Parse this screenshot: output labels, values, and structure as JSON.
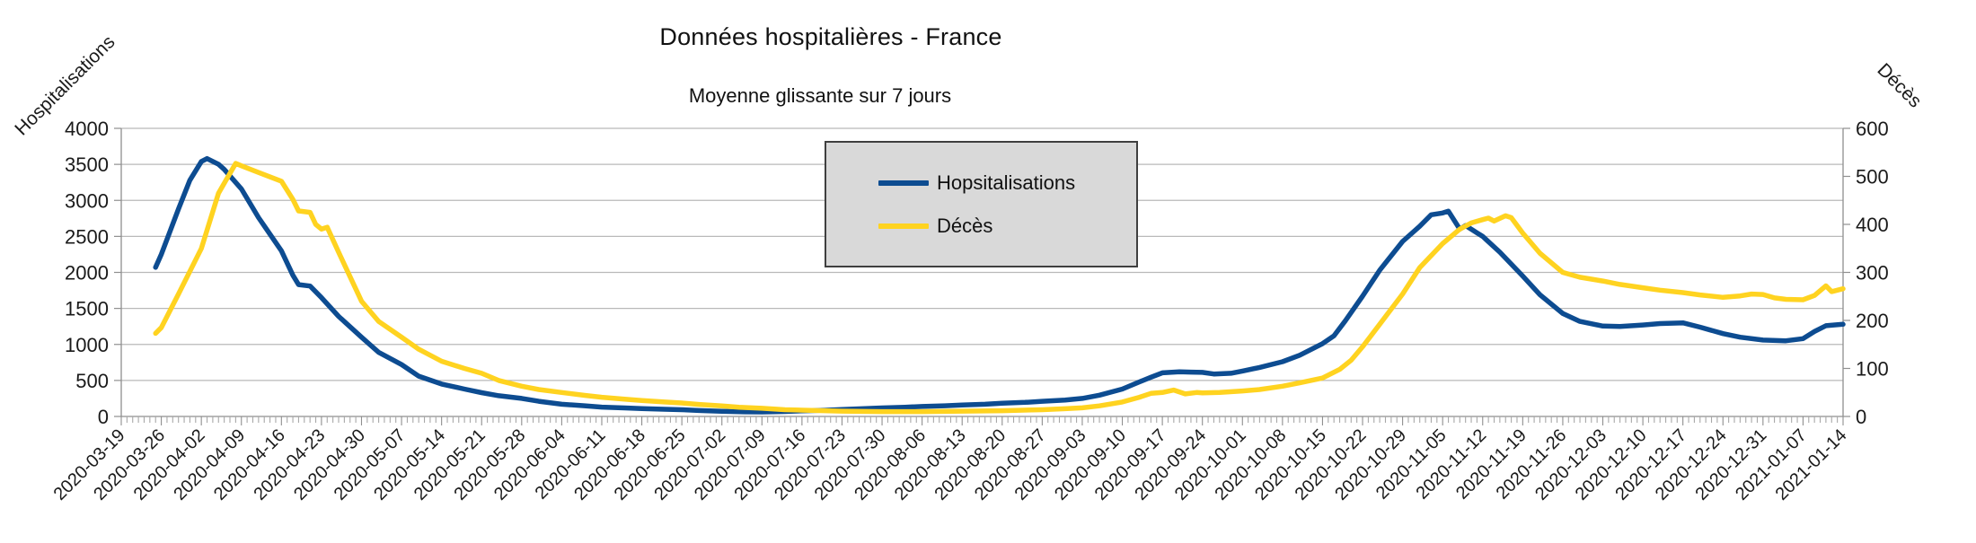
{
  "title": "Données hospitalières - France",
  "subtitle": "Moyenne glissante sur 7 jours",
  "left_axis": {
    "label": "Hospitalisations",
    "min": 0,
    "max": 4000,
    "tick_step": 500,
    "ticks": [
      "4000",
      "3500",
      "3000",
      "2500",
      "2000",
      "1500",
      "1000",
      "500",
      "0"
    ]
  },
  "right_axis": {
    "label": "Décès",
    "min": 0,
    "max": 600,
    "tick_step": 100,
    "ticks": [
      "600",
      "500",
      "400",
      "300",
      "200",
      "100",
      "0"
    ]
  },
  "legend": {
    "items": [
      {
        "label": "Hopsitalisations",
        "color": "#0d4c91"
      },
      {
        "label": "Décès",
        "color": "#ffd320"
      }
    ]
  },
  "chart_data": {
    "type": "line",
    "title": "Données hospitalières - France",
    "subtitle": "Moyenne glissante sur 7 jours",
    "x_start_date": "2020-03-19",
    "x_end_date": "2021-01-14",
    "x_minor_ticks": "daily",
    "x_tick_labels": [
      "2020-03-19",
      "2020-03-26",
      "2020-04-02",
      "2020-04-09",
      "2020-04-16",
      "2020-04-23",
      "2020-04-30",
      "2020-05-07",
      "2020-05-14",
      "2020-05-21",
      "2020-05-28",
      "2020-06-04",
      "2020-06-11",
      "2020-06-18",
      "2020-06-25",
      "2020-07-02",
      "2020-07-09",
      "2020-07-16",
      "2020-07-23",
      "2020-07-30",
      "2020-08-06",
      "2020-08-13",
      "2020-08-20",
      "2020-08-27",
      "2020-09-03",
      "2020-09-10",
      "2020-09-17",
      "2020-09-24",
      "2020-10-01",
      "2020-10-08",
      "2020-10-15",
      "2020-10-22",
      "2020-10-29",
      "2020-11-05",
      "2020-11-12",
      "2020-11-19",
      "2020-11-26",
      "2020-12-03",
      "2020-12-10",
      "2020-12-17",
      "2020-12-24",
      "2020-12-31",
      "2021-01-07",
      "2021-01-14"
    ],
    "ylim_left": [
      0,
      4000
    ],
    "ylim_right": [
      0,
      600
    ],
    "grid": "horizontal",
    "legend_position": "inner-top-center",
    "series": [
      {
        "name": "Hopsitalisations",
        "axis": "left",
        "color": "#0d4c91",
        "points_day_value": [
          [
            6,
            2070
          ],
          [
            7,
            2250
          ],
          [
            10,
            2880
          ],
          [
            12,
            3280
          ],
          [
            14,
            3540
          ],
          [
            15,
            3580
          ],
          [
            17,
            3500
          ],
          [
            18,
            3430
          ],
          [
            21,
            3160
          ],
          [
            24,
            2760
          ],
          [
            28,
            2300
          ],
          [
            30,
            1960
          ],
          [
            31,
            1830
          ],
          [
            33,
            1810
          ],
          [
            35,
            1650
          ],
          [
            38,
            1390
          ],
          [
            42,
            1100
          ],
          [
            45,
            890
          ],
          [
            49,
            720
          ],
          [
            52,
            560
          ],
          [
            56,
            450
          ],
          [
            60,
            380
          ],
          [
            63,
            330
          ],
          [
            66,
            288
          ],
          [
            70,
            250
          ],
          [
            73,
            210
          ],
          [
            77,
            170
          ],
          [
            81,
            148
          ],
          [
            84,
            130
          ],
          [
            88,
            118
          ],
          [
            91,
            110
          ],
          [
            95,
            100
          ],
          [
            98,
            93
          ],
          [
            101,
            82
          ],
          [
            105,
            72
          ],
          [
            109,
            64
          ],
          [
            112,
            62
          ],
          [
            116,
            68
          ],
          [
            119,
            78
          ],
          [
            123,
            86
          ],
          [
            126,
            96
          ],
          [
            129,
            106
          ],
          [
            133,
            118
          ],
          [
            137,
            128
          ],
          [
            140,
            138
          ],
          [
            144,
            148
          ],
          [
            147,
            158
          ],
          [
            151,
            170
          ],
          [
            154,
            184
          ],
          [
            158,
            196
          ],
          [
            161,
            210
          ],
          [
            165,
            228
          ],
          [
            168,
            250
          ],
          [
            171,
            295
          ],
          [
            175,
            380
          ],
          [
            178,
            480
          ],
          [
            180,
            545
          ],
          [
            182,
            605
          ],
          [
            185,
            620
          ],
          [
            187,
            615
          ],
          [
            189,
            612
          ],
          [
            191,
            590
          ],
          [
            194,
            600
          ],
          [
            196,
            630
          ],
          [
            199,
            680
          ],
          [
            203,
            760
          ],
          [
            206,
            850
          ],
          [
            210,
            1010
          ],
          [
            212,
            1120
          ],
          [
            214,
            1330
          ],
          [
            217,
            1670
          ],
          [
            220,
            2030
          ],
          [
            224,
            2430
          ],
          [
            227,
            2640
          ],
          [
            229,
            2800
          ],
          [
            231,
            2825
          ],
          [
            232,
            2850
          ],
          [
            234,
            2600
          ],
          [
            235,
            2650
          ],
          [
            237,
            2550
          ],
          [
            238,
            2500
          ],
          [
            241,
            2280
          ],
          [
            245,
            1950
          ],
          [
            248,
            1690
          ],
          [
            252,
            1430
          ],
          [
            255,
            1320
          ],
          [
            259,
            1255
          ],
          [
            262,
            1250
          ],
          [
            266,
            1270
          ],
          [
            269,
            1290
          ],
          [
            273,
            1300
          ],
          [
            276,
            1240
          ],
          [
            280,
            1150
          ],
          [
            283,
            1100
          ],
          [
            287,
            1060
          ],
          [
            291,
            1050
          ],
          [
            294,
            1080
          ],
          [
            296,
            1180
          ],
          [
            298,
            1260
          ],
          [
            301,
            1280
          ]
        ]
      },
      {
        "name": "Décès",
        "axis": "right",
        "color": "#ffd320",
        "points_day_value": [
          [
            6,
            173
          ],
          [
            7,
            185
          ],
          [
            10,
            255
          ],
          [
            14,
            350
          ],
          [
            17,
            465
          ],
          [
            20,
            527
          ],
          [
            21,
            522
          ],
          [
            24,
            508
          ],
          [
            28,
            490
          ],
          [
            30,
            452
          ],
          [
            31,
            428
          ],
          [
            33,
            425
          ],
          [
            34,
            400
          ],
          [
            35,
            390
          ],
          [
            36,
            394
          ],
          [
            38,
            342
          ],
          [
            42,
            240
          ],
          [
            45,
            198
          ],
          [
            49,
            165
          ],
          [
            52,
            140
          ],
          [
            56,
            115
          ],
          [
            60,
            100
          ],
          [
            63,
            90
          ],
          [
            66,
            75
          ],
          [
            70,
            63
          ],
          [
            73,
            56
          ],
          [
            77,
            50
          ],
          [
            81,
            44
          ],
          [
            84,
            40
          ],
          [
            88,
            36
          ],
          [
            91,
            33
          ],
          [
            95,
            30
          ],
          [
            98,
            28
          ],
          [
            101,
            25
          ],
          [
            105,
            22
          ],
          [
            108,
            19
          ],
          [
            112,
            17
          ],
          [
            116,
            14
          ],
          [
            119,
            13
          ],
          [
            123,
            12
          ],
          [
            126,
            11
          ],
          [
            133,
            10
          ],
          [
            140,
            10
          ],
          [
            147,
            11
          ],
          [
            154,
            12
          ],
          [
            161,
            14
          ],
          [
            165,
            16
          ],
          [
            168,
            18
          ],
          [
            171,
            22
          ],
          [
            175,
            30
          ],
          [
            178,
            40
          ],
          [
            180,
            48
          ],
          [
            182,
            50
          ],
          [
            184,
            55
          ],
          [
            186,
            47
          ],
          [
            188,
            50
          ],
          [
            189,
            49
          ],
          [
            192,
            50
          ],
          [
            196,
            53
          ],
          [
            199,
            56
          ],
          [
            203,
            63
          ],
          [
            206,
            70
          ],
          [
            210,
            80
          ],
          [
            213,
            98
          ],
          [
            215,
            117
          ],
          [
            217,
            145
          ],
          [
            220,
            192
          ],
          [
            224,
            255
          ],
          [
            227,
            310
          ],
          [
            231,
            360
          ],
          [
            234,
            390
          ],
          [
            236,
            403
          ],
          [
            238,
            410
          ],
          [
            239,
            413
          ],
          [
            240,
            407
          ],
          [
            242,
            418
          ],
          [
            243,
            414
          ],
          [
            245,
            382
          ],
          [
            248,
            340
          ],
          [
            252,
            300
          ],
          [
            255,
            290
          ],
          [
            259,
            282
          ],
          [
            262,
            275
          ],
          [
            266,
            268
          ],
          [
            269,
            263
          ],
          [
            273,
            258
          ],
          [
            276,
            253
          ],
          [
            280,
            248
          ],
          [
            283,
            251
          ],
          [
            285,
            255
          ],
          [
            287,
            254
          ],
          [
            289,
            247
          ],
          [
            291,
            244
          ],
          [
            294,
            243
          ],
          [
            296,
            252
          ],
          [
            298,
            272
          ],
          [
            299,
            260
          ],
          [
            301,
            266
          ]
        ]
      }
    ]
  }
}
